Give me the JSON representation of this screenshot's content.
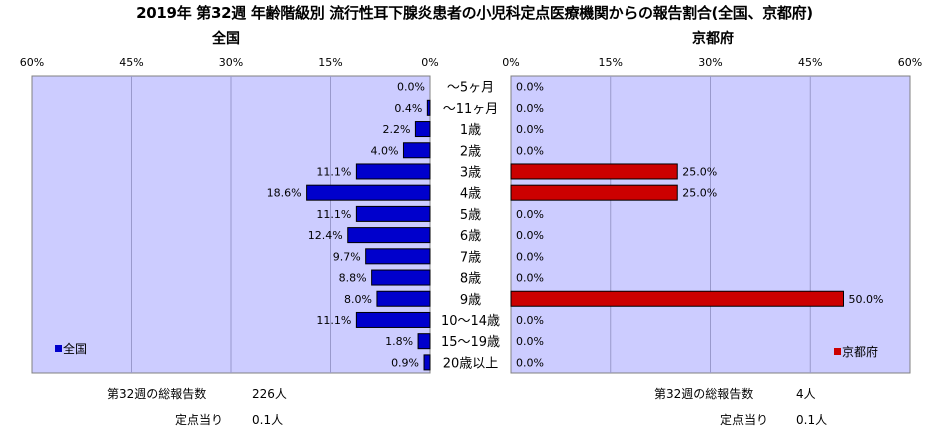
{
  "title": "2019年 第32週 年齢階級別 流行性耳下腺炎患者の小児科定点医療機関からの報告割合(全国、京都府)",
  "left_panel": {
    "title": "全国",
    "legend": "全国"
  },
  "right_panel": {
    "title": "京都府",
    "legend": "京都府"
  },
  "colors": {
    "national": "#0000cc",
    "kyoto": "#cc0000",
    "plot_bg": "#ccccff",
    "grid": "#9999cc"
  },
  "footer": {
    "national": {
      "total_label": "第32週の総報告数",
      "total_value": "226人",
      "per_label": "定点当り",
      "per_value": "0.1人"
    },
    "kyoto": {
      "total_label": "第32週の総報告数",
      "total_value": "4人",
      "per_label": "定点当り",
      "per_value": "0.1人"
    }
  },
  "chart_data": {
    "type": "bar",
    "orientation": "horizontal",
    "categories": [
      "～5ヶ月",
      "～11ヶ月",
      "1歳",
      "2歳",
      "3歳",
      "4歳",
      "5歳",
      "6歳",
      "7歳",
      "8歳",
      "9歳",
      "10～14歳",
      "15～19歳",
      "20歳以上"
    ],
    "series": [
      {
        "name": "全国",
        "values": [
          0.0,
          0.4,
          2.2,
          4.0,
          11.1,
          18.6,
          11.1,
          12.4,
          9.7,
          8.8,
          8.0,
          11.1,
          1.8,
          0.9
        ]
      },
      {
        "name": "京都府",
        "values": [
          0.0,
          0.0,
          0.0,
          0.0,
          25.0,
          25.0,
          0.0,
          0.0,
          0.0,
          0.0,
          50.0,
          0.0,
          0.0,
          0.0
        ]
      }
    ],
    "xlim": [
      0,
      60
    ],
    "ticks": [
      "60%",
      "45%",
      "30%",
      "15%",
      "0%"
    ],
    "ticks_right": [
      "0%",
      "15%",
      "30%",
      "45%",
      "60%"
    ],
    "unit": "%"
  }
}
